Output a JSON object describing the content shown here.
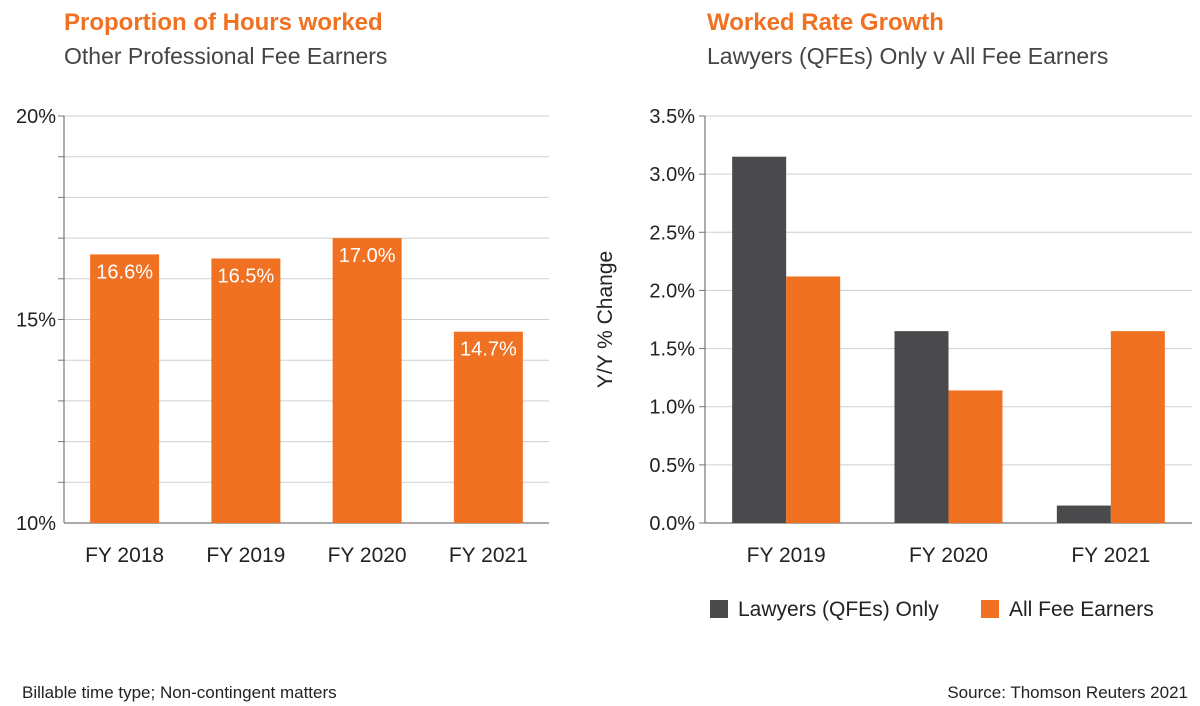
{
  "colors": {
    "title": "#f07122",
    "subtitle": "#444444",
    "orange": "#f07122",
    "dark": "#4a4a4d",
    "grid": "#cfcfcf",
    "axis": "#777777",
    "text": "#222222",
    "bar_label": "#ffffff"
  },
  "chart_data": [
    {
      "type": "bar",
      "title": "Proportion of Hours worked",
      "subtitle": "Other Professional Fee Earners",
      "xlabel": "",
      "ylabel": "",
      "categories": [
        "FY 2018",
        "FY 2019",
        "FY 2020",
        "FY 2021"
      ],
      "values": [
        16.6,
        16.5,
        17.0,
        14.7
      ],
      "data_labels": [
        "16.6%",
        "16.5%",
        "17.0%",
        "14.7%"
      ],
      "ylim": [
        10,
        20
      ],
      "yticks": [
        10,
        15,
        20
      ],
      "ytick_labels": [
        "10%",
        "15%",
        "20%"
      ],
      "minor_grid_step": 1,
      "grid": true,
      "series_color": "#f07122"
    },
    {
      "type": "bar",
      "title": "Worked Rate Growth",
      "subtitle": "Lawyers (QFEs) Only v All Fee Earners",
      "xlabel": "",
      "ylabel": "Y/Y % Change",
      "categories": [
        "FY 2019",
        "FY 2020",
        "FY 2021"
      ],
      "series": [
        {
          "name": "Lawyers (QFEs) Only",
          "values": [
            3.15,
            1.65,
            0.15
          ],
          "color": "#4a4a4d"
        },
        {
          "name": "All Fee Earners",
          "values": [
            2.12,
            1.14,
            1.65
          ],
          "color": "#f07122"
        }
      ],
      "ylim": [
        0,
        3.5
      ],
      "yticks": [
        0,
        0.5,
        1.0,
        1.5,
        2.0,
        2.5,
        3.0,
        3.5
      ],
      "ytick_labels": [
        "0.0%",
        "0.5%",
        "1.0%",
        "1.5%",
        "2.0%",
        "2.5%",
        "3.0%",
        "3.5%"
      ],
      "grid": true,
      "legend": "bottom"
    }
  ],
  "footnotes": {
    "left": "Billable time type; Non-contingent matters",
    "right": "Source: Thomson Reuters 2021"
  }
}
